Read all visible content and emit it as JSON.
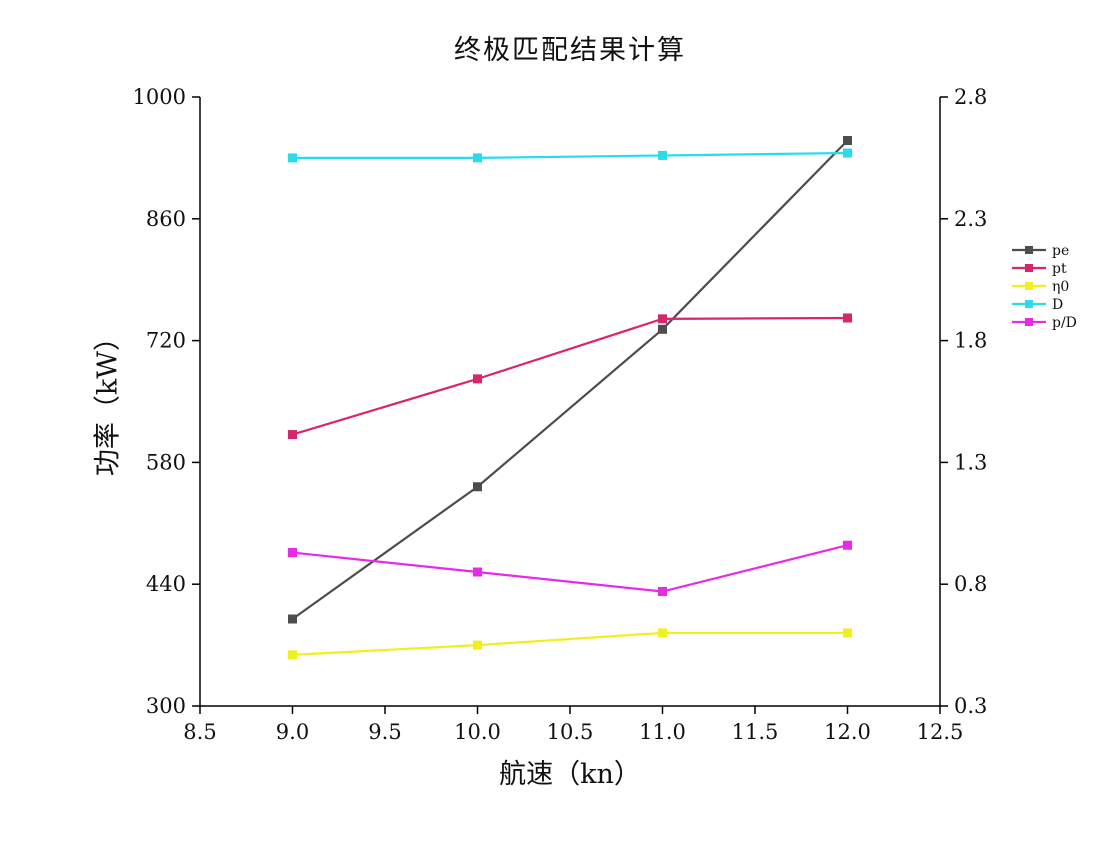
{
  "window": {
    "background": "#ffffff"
  },
  "chart_data": {
    "type": "line",
    "title": "终极匹配结果计算",
    "xlabel": "航速（kn）",
    "ylabel_left": "功率（kW）",
    "ylabel_right": "",
    "grid": false,
    "marker": "square",
    "legend_position": "right-outside",
    "axis_color": "#000000",
    "tick_label_color": "#111111",
    "xlim": [
      8.5,
      12.5
    ],
    "x_ticks": [
      8.5,
      9.0,
      9.5,
      10.0,
      10.5,
      11.0,
      11.5,
      12.0,
      12.5
    ],
    "x_tick_labels": [
      "8.5",
      "9.0",
      "9.5",
      "10.0",
      "10.5",
      "11.0",
      "11.5",
      "12.0",
      "12.5"
    ],
    "ylim_left": [
      300,
      1000
    ],
    "y_ticks_left": [
      300,
      440,
      580,
      720,
      860,
      1000
    ],
    "y_tick_labels_left": [
      "300",
      "440",
      "580",
      "720",
      "860",
      "1000"
    ],
    "ylim_right": [
      0.3,
      2.8
    ],
    "y_ticks_right": [
      0.3,
      0.8,
      1.3,
      1.8,
      2.3,
      2.8
    ],
    "y_tick_labels_right": [
      "0.3",
      "0.8",
      "1.3",
      "1.8",
      "2.3",
      "2.8"
    ],
    "x": [
      9.0,
      10.0,
      11.0,
      12.0
    ],
    "series": [
      {
        "name": "pe",
        "axis": "left",
        "color": "#4d4d4d",
        "values": [
          400,
          552,
          733,
          950
        ]
      },
      {
        "name": "pt",
        "axis": "left",
        "color": "#d9256d",
        "values": [
          612,
          676,
          745,
          746
        ]
      },
      {
        "name": "η0",
        "axis": "right",
        "color": "#f0f01e",
        "values": [
          0.51,
          0.55,
          0.6,
          0.6
        ]
      },
      {
        "name": "D",
        "axis": "right",
        "color": "#29dcec",
        "values": [
          2.55,
          2.55,
          2.56,
          2.57
        ]
      },
      {
        "name": "p/D",
        "axis": "right",
        "color": "#e829e8",
        "values": [
          0.93,
          0.85,
          0.77,
          0.96
        ]
      }
    ]
  }
}
